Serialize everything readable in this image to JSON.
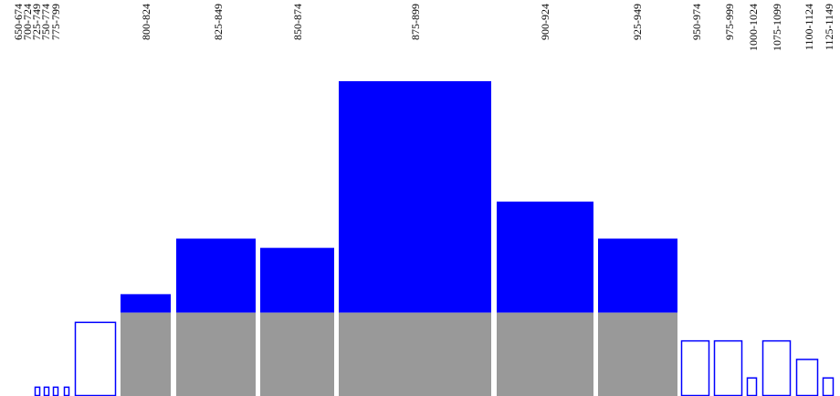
{
  "chart_data": {
    "type": "bar",
    "title": "",
    "xlabel": "",
    "ylabel": "",
    "legend": "none",
    "grid": false,
    "ylim": [
      0,
      34
    ],
    "categories": [
      "650-674",
      "700-724",
      "725-749",
      "750-774",
      "775-799",
      "800-824",
      "825-849",
      "850-874",
      "875-899",
      "900-924",
      "925-949",
      "950-974",
      "975-999",
      "1000-1024",
      "1075-1099",
      "1100-1124",
      "1125-1149"
    ],
    "values": [
      1,
      1,
      1,
      1,
      8,
      11,
      17,
      16,
      34,
      21,
      17,
      6,
      6,
      2,
      6,
      4,
      2
    ],
    "base_values": [
      0,
      0,
      0,
      0,
      0,
      9,
      9,
      9,
      9,
      9,
      9,
      0,
      0,
      0,
      0,
      0,
      0
    ],
    "colors": {
      "highlight_fill": "#0000ff",
      "base_fill": "#999999",
      "outline": "#0000ff",
      "background": "#ffffff"
    }
  }
}
